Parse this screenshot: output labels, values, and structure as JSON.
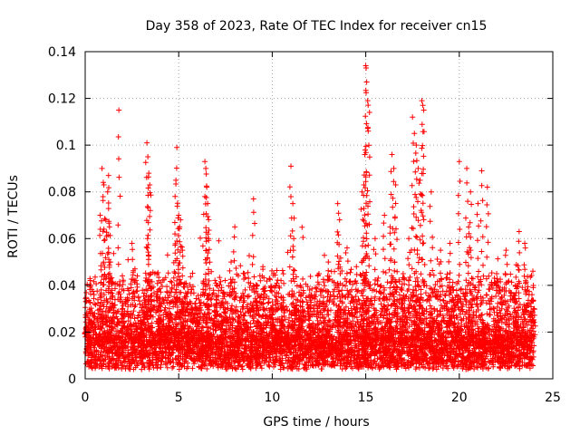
{
  "chart_data": {
    "type": "scatter",
    "title": "Day 358 of 2023, Rate Of TEC Index for receiver cn15",
    "xlabel": "GPS time / hours",
    "ylabel": "ROTI / TECUs",
    "xlim": [
      0,
      25
    ],
    "ylim": [
      0,
      0.14
    ],
    "grid": true,
    "marker": "+",
    "color": "#ff0000",
    "x_ticks": [
      0,
      5,
      10,
      15,
      20,
      25
    ],
    "x_tick_labels": [
      "0",
      "5",
      "10",
      "15",
      "20",
      "25"
    ],
    "y_ticks": [
      0,
      0.02,
      0.04,
      0.06,
      0.08,
      0.1,
      0.12,
      0.14
    ],
    "y_tick_labels": [
      "0",
      "0.02",
      "0.04",
      "0.06",
      "0.08",
      "0.1",
      "0.12",
      "0.14"
    ],
    "data_range": [
      0,
      24
    ],
    "series": [
      {
        "name": "ROTI",
        "x": [
          0.05,
          0.3,
          0.5,
          0.8,
          0.9,
          1.0,
          1.1,
          1.2,
          1.25,
          1.3,
          1.35,
          1.8,
          2.0,
          2.5,
          3.0,
          3.3,
          3.35,
          3.4,
          3.45,
          3.5,
          4.0,
          4.5,
          4.8,
          4.85,
          4.9,
          5.0,
          5.05,
          5.1,
          5.2,
          5.3,
          5.5,
          6.0,
          6.4,
          6.45,
          6.5,
          6.55,
          6.6,
          7.0,
          7.5,
          7.8,
          8.0,
          8.5,
          9.0,
          9.2,
          9.5,
          10.0,
          10.5,
          11.0,
          11.1,
          11.15,
          11.5,
          12.0,
          12.5,
          13.0,
          13.5,
          13.6,
          14.0,
          14.5,
          14.8,
          14.9,
          14.95,
          15.0,
          15.02,
          15.05,
          15.1,
          15.2,
          15.5,
          16.0,
          16.3,
          16.4,
          16.5,
          16.6,
          17.0,
          17.3,
          17.5,
          17.6,
          17.7,
          17.8,
          17.9,
          18.0,
          18.05,
          18.1,
          18.5,
          19.0,
          19.5,
          20.0,
          20.4,
          20.5,
          20.6,
          21.0,
          21.2,
          21.5,
          22.0,
          22.5,
          23.0,
          23.2,
          23.5,
          24.0
        ],
        "y": [
          0.022,
          0.04,
          0.028,
          0.07,
          0.09,
          0.083,
          0.068,
          0.08,
          0.087,
          0.065,
          0.05,
          0.115,
          0.03,
          0.058,
          0.02,
          0.101,
          0.095,
          0.088,
          0.083,
          0.045,
          0.025,
          0.03,
          0.062,
          0.085,
          0.099,
          0.07,
          0.065,
          0.068,
          0.055,
          0.035,
          0.02,
          0.03,
          0.093,
          0.09,
          0.082,
          0.075,
          0.06,
          0.035,
          0.028,
          0.05,
          0.065,
          0.045,
          0.077,
          0.04,
          0.048,
          0.03,
          0.035,
          0.091,
          0.075,
          0.06,
          0.04,
          0.038,
          0.045,
          0.05,
          0.075,
          0.068,
          0.056,
          0.048,
          0.08,
          0.083,
          0.096,
          0.134,
          0.133,
          0.127,
          0.119,
          0.114,
          0.06,
          0.07,
          0.065,
          0.096,
          0.09,
          0.083,
          0.045,
          0.06,
          0.112,
          0.105,
          0.1,
          0.09,
          0.085,
          0.119,
          0.117,
          0.115,
          0.08,
          0.055,
          0.058,
          0.093,
          0.09,
          0.065,
          0.08,
          0.075,
          0.089,
          0.082,
          0.045,
          0.055,
          0.04,
          0.063,
          0.058,
          0.03
        ]
      }
    ]
  }
}
